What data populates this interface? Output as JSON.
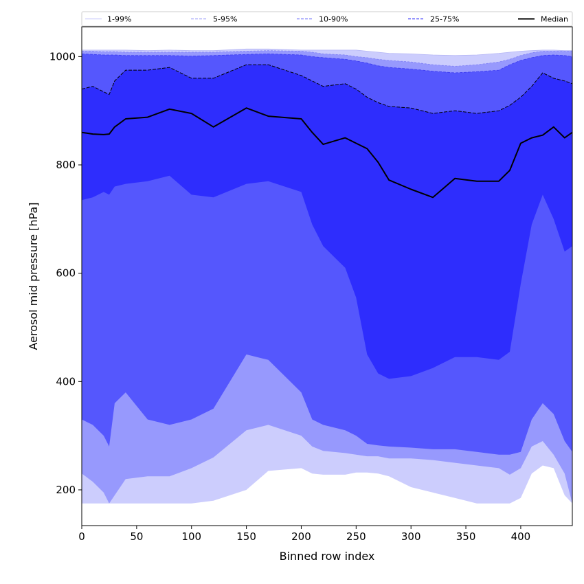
{
  "chart_data": {
    "type": "area",
    "xlabel": "Binned row index",
    "ylabel": "Aerosol mid pressure [hPa]",
    "xlim": [
      0,
      447
    ],
    "ylim": [
      134,
      1055
    ],
    "x_ticks": [
      0,
      50,
      100,
      150,
      200,
      250,
      300,
      350,
      400
    ],
    "y_ticks": [
      200,
      400,
      600,
      800,
      1000
    ],
    "grid": false,
    "legend_position": "top, full width",
    "x": [
      0,
      10,
      20,
      25,
      30,
      40,
      60,
      80,
      100,
      120,
      150,
      170,
      200,
      210,
      220,
      240,
      250,
      260,
      270,
      280,
      300,
      320,
      340,
      360,
      380,
      390,
      400,
      410,
      420,
      430,
      440,
      447
    ],
    "bands": [
      {
        "name": "1-99%",
        "color": "#cccdfd",
        "lower": [
          175,
          175,
          175,
          175,
          175,
          175,
          175,
          175,
          175,
          180,
          200,
          235,
          240,
          230,
          228,
          228,
          232,
          232,
          230,
          225,
          205,
          195,
          185,
          175,
          175,
          175,
          185,
          230,
          245,
          240,
          190,
          175
        ],
        "upper": [
          1012,
          1012,
          1012,
          1012,
          1012,
          1012,
          1011,
          1012,
          1011,
          1011,
          1014,
          1014,
          1012,
          1012,
          1012,
          1012,
          1012,
          1010,
          1008,
          1006,
          1005,
          1003,
          1002,
          1003,
          1006,
          1008,
          1010,
          1011,
          1012,
          1012,
          1011,
          1011
        ]
      },
      {
        "name": "5-95%",
        "color": "#9799fd",
        "lower": [
          230,
          215,
          195,
          175,
          190,
          220,
          225,
          225,
          240,
          260,
          310,
          320,
          300,
          280,
          272,
          268,
          265,
          262,
          262,
          258,
          258,
          255,
          250,
          245,
          240,
          228,
          240,
          280,
          290,
          265,
          230,
          175
        ],
        "upper": [
          1010,
          1010,
          1009,
          1009,
          1009,
          1008,
          1008,
          1008,
          1008,
          1008,
          1010,
          1011,
          1010,
          1008,
          1005,
          1003,
          1000,
          998,
          995,
          993,
          990,
          985,
          982,
          985,
          990,
          995,
          1002,
          1007,
          1010,
          1010,
          1010,
          1010
        ]
      },
      {
        "name": "10-90%",
        "color": "#5557fd",
        "lower": [
          330,
          320,
          300,
          280,
          360,
          380,
          330,
          320,
          330,
          350,
          450,
          440,
          380,
          330,
          320,
          310,
          300,
          285,
          282,
          280,
          278,
          275,
          275,
          270,
          265,
          265,
          270,
          330,
          360,
          340,
          290,
          270
        ],
        "upper": [
          1005,
          1004,
          1003,
          1003,
          1003,
          1002,
          1002,
          1002,
          1001,
          1002,
          1004,
          1005,
          1003,
          1000,
          998,
          995,
          992,
          988,
          983,
          980,
          977,
          973,
          970,
          972,
          975,
          985,
          993,
          998,
          1002,
          1003,
          1002,
          1000
        ]
      },
      {
        "name": "25-75%",
        "color": "#2e2dfd",
        "lower": [
          735,
          740,
          750,
          745,
          760,
          765,
          770,
          780,
          745,
          740,
          765,
          770,
          750,
          690,
          650,
          610,
          555,
          450,
          415,
          405,
          410,
          425,
          445,
          445,
          440,
          455,
          580,
          690,
          745,
          700,
          640,
          650
        ],
        "upper": [
          940,
          945,
          935,
          930,
          955,
          975,
          975,
          980,
          960,
          960,
          985,
          985,
          965,
          955,
          945,
          950,
          940,
          925,
          915,
          908,
          905,
          895,
          900,
          895,
          900,
          910,
          925,
          945,
          970,
          960,
          955,
          950
        ]
      }
    ],
    "median": {
      "name": "Median",
      "color": "#000000",
      "values": [
        860,
        857,
        856,
        857,
        870,
        885,
        888,
        903,
        895,
        870,
        905,
        890,
        885,
        860,
        838,
        850,
        840,
        830,
        805,
        772,
        755,
        740,
        775,
        770,
        770,
        790,
        840,
        850,
        855,
        870,
        850,
        860
      ]
    },
    "legend": [
      {
        "label": "1-99%",
        "color": "#c9cafb",
        "style": "solid"
      },
      {
        "label": "5-95%",
        "color": "#9b9dfa",
        "style": "dashed"
      },
      {
        "label": "10-90%",
        "color": "#6e6ffc",
        "style": "dashed"
      },
      {
        "label": "25-75%",
        "color": "#2f2efb",
        "style": "dashed"
      },
      {
        "label": "Median",
        "color": "#000000",
        "style": "solid"
      }
    ]
  }
}
